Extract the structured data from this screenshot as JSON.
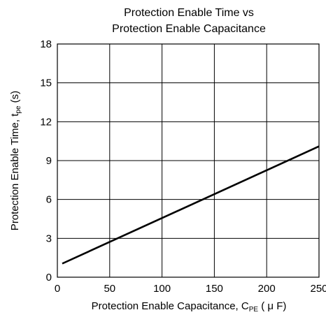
{
  "chart_data": {
    "type": "line",
    "title": [
      "Protection Enable Time vs",
      "Protection Enable Capacitance"
    ],
    "xlabel": {
      "text": "Protection Enable Capacitance, C",
      "sub": "PE",
      "unit": " ( μ F)"
    },
    "ylabel": {
      "text": "Protection Enable Time, t",
      "sub": "pe",
      "unit": " (s)"
    },
    "xlim": [
      0,
      250
    ],
    "ylim": [
      0,
      18
    ],
    "xticks": [
      0,
      50,
      100,
      150,
      200,
      250
    ],
    "yticks": [
      0,
      3,
      6,
      9,
      12,
      15,
      18
    ],
    "grid": true,
    "series": [
      {
        "x": [
          4.7,
          250
        ],
        "y": [
          1.05,
          10.1
        ]
      }
    ]
  }
}
